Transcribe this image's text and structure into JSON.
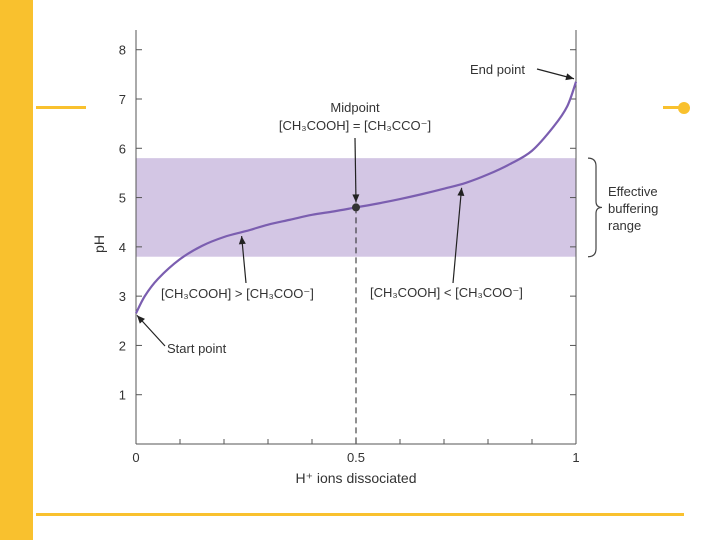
{
  "theme": {
    "accent": "#F9C12E",
    "curve": "#7B5EB0",
    "band": "#D3C6E4",
    "axis": "#555555"
  },
  "chart_data": {
    "type": "line",
    "xlabel": "H⁺ ions dissociated",
    "ylabel": "pH",
    "xlim": [
      0,
      1
    ],
    "ylim": [
      0,
      8.4
    ],
    "xticks": [
      0,
      0.5,
      1
    ],
    "xtick_labels": [
      "0",
      "0.5",
      "1"
    ],
    "yticks": [
      1,
      2,
      3,
      4,
      5,
      6,
      7,
      8
    ],
    "ytick_labels": [
      "1",
      "2",
      "3",
      "4",
      "5",
      "6",
      "7",
      "8"
    ],
    "grid": false,
    "series": [
      {
        "x": [
          0,
          0.02,
          0.05,
          0.1,
          0.15,
          0.2,
          0.25,
          0.3,
          0.35,
          0.4,
          0.45,
          0.5,
          0.55,
          0.6,
          0.65,
          0.7,
          0.75,
          0.8,
          0.85,
          0.9,
          0.95,
          0.98,
          1.0
        ],
        "y": [
          2.65,
          3.0,
          3.35,
          3.75,
          4.02,
          4.2,
          4.32,
          4.45,
          4.55,
          4.65,
          4.72,
          4.8,
          4.88,
          4.97,
          5.07,
          5.18,
          5.3,
          5.47,
          5.68,
          5.95,
          6.45,
          6.85,
          7.35
        ]
      }
    ],
    "band": {
      "y_range": [
        3.8,
        5.8
      ],
      "label": [
        "Effective",
        "buffering",
        "range"
      ]
    },
    "midpoint": {
      "x": 0.5,
      "y": 4.8,
      "title": "Midpoint",
      "label": "[CH₃COOH] = [CH₃CCO⁻]"
    },
    "annotations": {
      "end_point": "End point",
      "start_point": "Start point",
      "left_region": "[CH₃COOH] > [CH₃COO⁻]",
      "right_region": "[CH₃COOH] < [CH₃COO⁻]"
    }
  }
}
